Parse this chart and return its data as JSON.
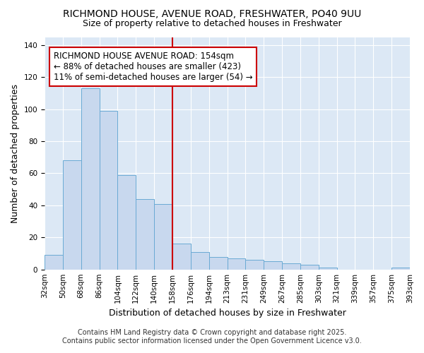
{
  "title": "RICHMOND HOUSE, AVENUE ROAD, FRESHWATER, PO40 9UU",
  "subtitle": "Size of property relative to detached houses in Freshwater",
  "xlabel": "Distribution of detached houses by size in Freshwater",
  "ylabel": "Number of detached properties",
  "footer_line1": "Contains HM Land Registry data © Crown copyright and database right 2025.",
  "footer_line2": "Contains public sector information licensed under the Open Government Licence v3.0.",
  "annotation_line1": "RICHMOND HOUSE AVENUE ROAD: 154sqm",
  "annotation_line2": "← 88% of detached houses are smaller (423)",
  "annotation_line3": "11% of semi-detached houses are larger (54) →",
  "bin_labels": [
    "32sqm",
    "50sqm",
    "68sqm",
    "86sqm",
    "104sqm",
    "122sqm",
    "140sqm",
    "158sqm",
    "176sqm",
    "194sqm",
    "213sqm",
    "231sqm",
    "249sqm",
    "267sqm",
    "285sqm",
    "303sqm",
    "321sqm",
    "339sqm",
    "357sqm",
    "375sqm",
    "393sqm"
  ],
  "bar_values": [
    9,
    68,
    113,
    99,
    59,
    44,
    41,
    16,
    11,
    8,
    7,
    6,
    5,
    4,
    3,
    1,
    0,
    0,
    0,
    1
  ],
  "bar_color": "#c8d8ee",
  "bar_edge_color": "#6aaad4",
  "vline_color": "#cc0000",
  "annotation_box_edge_color": "#cc0000",
  "figure_bg_color": "#ffffff",
  "axes_bg_color": "#dce8f5",
  "grid_color": "#ffffff",
  "title_fontsize": 10,
  "subtitle_fontsize": 9,
  "axis_label_fontsize": 9,
  "tick_fontsize": 7.5,
  "annotation_fontsize": 8.5,
  "footer_fontsize": 7,
  "ylim": [
    0,
    145
  ],
  "yticks": [
    0,
    20,
    40,
    60,
    80,
    100,
    120,
    140
  ],
  "vline_bin_index": 7
}
